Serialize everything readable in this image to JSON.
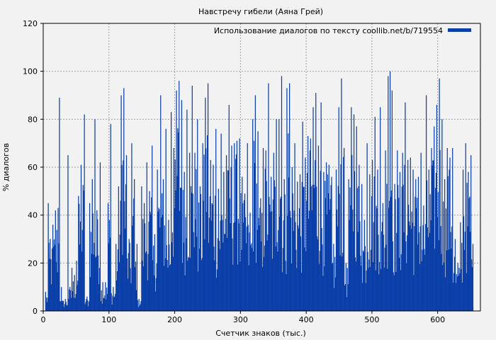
{
  "chart_data": {
    "type": "bar",
    "title": "Навстречу гибели (Аяна Грей)",
    "xlabel": "Счетчик знаков (тыс.)",
    "ylabel": "% диалогов",
    "xlim": [
      0,
      665
    ],
    "ylim": [
      0,
      120
    ],
    "xticks": [
      0,
      100,
      200,
      300,
      400,
      500,
      600
    ],
    "yticks": [
      0,
      20,
      40,
      60,
      80,
      100,
      120
    ],
    "grid": true,
    "legend_position": "top-right",
    "colors": {
      "series": "#0b3fa8",
      "background": "#f2f2f2",
      "grid": "#a0a0a0"
    },
    "series": [
      {
        "name": "Использование диалогов по тексту coollib.net/b/719554",
        "peaks": [
          [
            3,
            8
          ],
          [
            7,
            45
          ],
          [
            10,
            30
          ],
          [
            14,
            36
          ],
          [
            18,
            42
          ],
          [
            22,
            43
          ],
          [
            24,
            89
          ],
          [
            27,
            10
          ],
          [
            33,
            5
          ],
          [
            37,
            65
          ],
          [
            40,
            10
          ],
          [
            43,
            18
          ],
          [
            47,
            15
          ],
          [
            50,
            21
          ],
          [
            53,
            48
          ],
          [
            57,
            61
          ],
          [
            62,
            82
          ],
          [
            66,
            6
          ],
          [
            70,
            45
          ],
          [
            74,
            55
          ],
          [
            78,
            80
          ],
          [
            81,
            42
          ],
          [
            86,
            62
          ],
          [
            90,
            12
          ],
          [
            94,
            12
          ],
          [
            98,
            45
          ],
          [
            102,
            78
          ],
          [
            106,
            10
          ],
          [
            110,
            28
          ],
          [
            114,
            52
          ],
          [
            118,
            90
          ],
          [
            122,
            93
          ],
          [
            126,
            65
          ],
          [
            130,
            30
          ],
          [
            134,
            70
          ],
          [
            138,
            55
          ],
          [
            142,
            28
          ],
          [
            145,
            5
          ],
          [
            149,
            52
          ],
          [
            153,
            45
          ],
          [
            157,
            62
          ],
          [
            161,
            50
          ],
          [
            165,
            69
          ],
          [
            169,
            32
          ],
          [
            173,
            59
          ],
          [
            178,
            90
          ],
          [
            182,
            55
          ],
          [
            186,
            76
          ],
          [
            190,
            38
          ],
          [
            194,
            83
          ],
          [
            198,
            68
          ],
          [
            202,
            92
          ],
          [
            206,
            96
          ],
          [
            210,
            88
          ],
          [
            214,
            58
          ],
          [
            218,
            84
          ],
          [
            222,
            66
          ],
          [
            226,
            94
          ],
          [
            230,
            66
          ],
          [
            234,
            80
          ],
          [
            238,
            52
          ],
          [
            242,
            70
          ],
          [
            246,
            89
          ],
          [
            250,
            95
          ],
          [
            254,
            63
          ],
          [
            258,
            61
          ],
          [
            262,
            76
          ],
          [
            266,
            51
          ],
          [
            270,
            74
          ],
          [
            274,
            58
          ],
          [
            278,
            65
          ],
          [
            282,
            86
          ],
          [
            286,
            69
          ],
          [
            290,
            70
          ],
          [
            294,
            71
          ],
          [
            298,
            72
          ],
          [
            302,
            56
          ],
          [
            306,
            49
          ],
          [
            310,
            70
          ],
          [
            314,
            41
          ],
          [
            318,
            80
          ],
          [
            322,
            90
          ],
          [
            326,
            75
          ],
          [
            330,
            47
          ],
          [
            334,
            68
          ],
          [
            338,
            67
          ],
          [
            342,
            95
          ],
          [
            346,
            56
          ],
          [
            350,
            66
          ],
          [
            354,
            80
          ],
          [
            358,
            80
          ],
          [
            362,
            98
          ],
          [
            366,
            55
          ],
          [
            370,
            93
          ],
          [
            374,
            95
          ],
          [
            378,
            60
          ],
          [
            382,
            70
          ],
          [
            386,
            54
          ],
          [
            390,
            57
          ],
          [
            394,
            79
          ],
          [
            398,
            64
          ],
          [
            402,
            73
          ],
          [
            406,
            72
          ],
          [
            410,
            85
          ],
          [
            414,
            91
          ],
          [
            418,
            69
          ],
          [
            422,
            87
          ],
          [
            426,
            58
          ],
          [
            430,
            62
          ],
          [
            434,
            61
          ],
          [
            438,
            56
          ],
          [
            441,
            28
          ],
          [
            445,
            59
          ],
          [
            449,
            85
          ],
          [
            453,
            97
          ],
          [
            457,
            68
          ],
          [
            460,
            20
          ],
          [
            464,
            55
          ],
          [
            468,
            85
          ],
          [
            472,
            82
          ],
          [
            476,
            77
          ],
          [
            480,
            61
          ],
          [
            484,
            53
          ],
          [
            488,
            38
          ],
          [
            492,
            70
          ],
          [
            496,
            57
          ],
          [
            500,
            63
          ],
          [
            504,
            81
          ],
          [
            508,
            59
          ],
          [
            512,
            85
          ],
          [
            516,
            45
          ],
          [
            520,
            67
          ],
          [
            524,
            98
          ],
          [
            527,
            100
          ],
          [
            530,
            92
          ],
          [
            534,
            53
          ],
          [
            538,
            67
          ],
          [
            542,
            58
          ],
          [
            546,
            66
          ],
          [
            550,
            87
          ],
          [
            554,
            63
          ],
          [
            558,
            64
          ],
          [
            562,
            59
          ],
          [
            566,
            55
          ],
          [
            570,
            56
          ],
          [
            574,
            66
          ],
          [
            578,
            44
          ],
          [
            582,
            90
          ],
          [
            586,
            59
          ],
          [
            590,
            68
          ],
          [
            594,
            77
          ],
          [
            598,
            86
          ],
          [
            602,
            97
          ],
          [
            606,
            80
          ],
          [
            610,
            55
          ],
          [
            614,
            68
          ],
          [
            618,
            64
          ],
          [
            622,
            68
          ],
          [
            626,
            30
          ],
          [
            630,
            20
          ],
          [
            634,
            37
          ],
          [
            638,
            59
          ],
          [
            642,
            70
          ],
          [
            646,
            58
          ],
          [
            650,
            65
          ],
          [
            653,
            28
          ]
        ]
      }
    ]
  }
}
